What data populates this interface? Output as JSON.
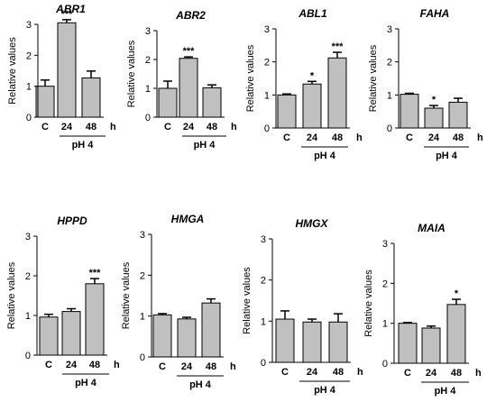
{
  "chart_data": [
    {
      "type": "bar",
      "title": "ABR1",
      "ylabel": "Relative values",
      "ylim": [
        0,
        3
      ],
      "yticks": [
        0,
        1,
        2,
        3
      ],
      "categories": [
        "C",
        "24",
        "48"
      ],
      "values": [
        1.0,
        3.05,
        1.27
      ],
      "errors": [
        0.2,
        0.1,
        0.22
      ],
      "significance": [
        "",
        "***",
        ""
      ],
      "time_unit": "h",
      "group_label": "pH 4",
      "bar_color": "#c0c0c0"
    },
    {
      "type": "bar",
      "title": "ABR2",
      "ylabel": "Relative values",
      "ylim": [
        0,
        3
      ],
      "yticks": [
        0,
        1,
        2,
        3
      ],
      "categories": [
        "C",
        "24",
        "48"
      ],
      "values": [
        1.0,
        2.04,
        1.02
      ],
      "errors": [
        0.25,
        0.05,
        0.1
      ],
      "significance": [
        "",
        "***",
        ""
      ],
      "time_unit": "h",
      "group_label": "pH 4",
      "bar_color": "#c0c0c0"
    },
    {
      "type": "bar",
      "title": "ABL1",
      "ylabel": "Relative values",
      "ylim": [
        0,
        3
      ],
      "yticks": [
        0,
        1,
        2,
        3
      ],
      "categories": [
        "C",
        "24",
        "48"
      ],
      "values": [
        1.0,
        1.33,
        2.12
      ],
      "errors": [
        0.03,
        0.08,
        0.17
      ],
      "significance": [
        "",
        "*",
        "***"
      ],
      "time_unit": "h",
      "group_label": "pH 4",
      "bar_color": "#c0c0c0"
    },
    {
      "type": "bar",
      "title": "FAHA",
      "ylabel": "Relative values",
      "ylim": [
        0,
        3
      ],
      "yticks": [
        0,
        1,
        2,
        3
      ],
      "categories": [
        "C",
        "24",
        "48"
      ],
      "values": [
        1.02,
        0.6,
        0.78
      ],
      "errors": [
        0.03,
        0.08,
        0.12
      ],
      "significance": [
        "",
        "*",
        ""
      ],
      "time_unit": "h",
      "group_label": "pH 4",
      "bar_color": "#c0c0c0"
    },
    {
      "type": "bar",
      "title": "HPPD",
      "ylabel": "Relative values",
      "ylim": [
        0,
        3
      ],
      "yticks": [
        0,
        1,
        2,
        3
      ],
      "categories": [
        "C",
        "24",
        "48"
      ],
      "values": [
        0.96,
        1.1,
        1.8
      ],
      "errors": [
        0.07,
        0.07,
        0.13
      ],
      "significance": [
        "",
        "",
        "***"
      ],
      "time_unit": "h",
      "group_label": "pH 4",
      "bar_color": "#c0c0c0"
    },
    {
      "type": "bar",
      "title": "HMGA",
      "ylabel": "Relative values",
      "ylim": [
        0,
        3
      ],
      "yticks": [
        0,
        1,
        2,
        3
      ],
      "categories": [
        "C",
        "24",
        "48"
      ],
      "values": [
        1.03,
        0.93,
        1.32
      ],
      "errors": [
        0.03,
        0.04,
        0.1
      ],
      "significance": [
        "",
        "",
        ""
      ],
      "time_unit": "h",
      "group_label": "pH 4",
      "bar_color": "#c0c0c0"
    },
    {
      "type": "bar",
      "title": "HMGX",
      "ylabel": "Relative values",
      "ylim": [
        0,
        3
      ],
      "yticks": [
        0,
        1,
        2,
        3
      ],
      "categories": [
        "C",
        "24",
        "48"
      ],
      "values": [
        1.05,
        0.98,
        0.98
      ],
      "errors": [
        0.2,
        0.07,
        0.2
      ],
      "significance": [
        "",
        "",
        ""
      ],
      "time_unit": "h",
      "group_label": "pH 4",
      "bar_color": "#c0c0c0"
    },
    {
      "type": "bar",
      "title": "MAIA",
      "ylabel": "Relative values",
      "ylim": [
        0,
        3
      ],
      "yticks": [
        0,
        1,
        2,
        3
      ],
      "categories": [
        "C",
        "24",
        "48"
      ],
      "values": [
        1.0,
        0.88,
        1.47
      ],
      "errors": [
        0.02,
        0.05,
        0.13
      ],
      "significance": [
        "",
        "",
        "*"
      ],
      "time_unit": "h",
      "group_label": "pH 4",
      "bar_color": "#c0c0c0"
    }
  ]
}
